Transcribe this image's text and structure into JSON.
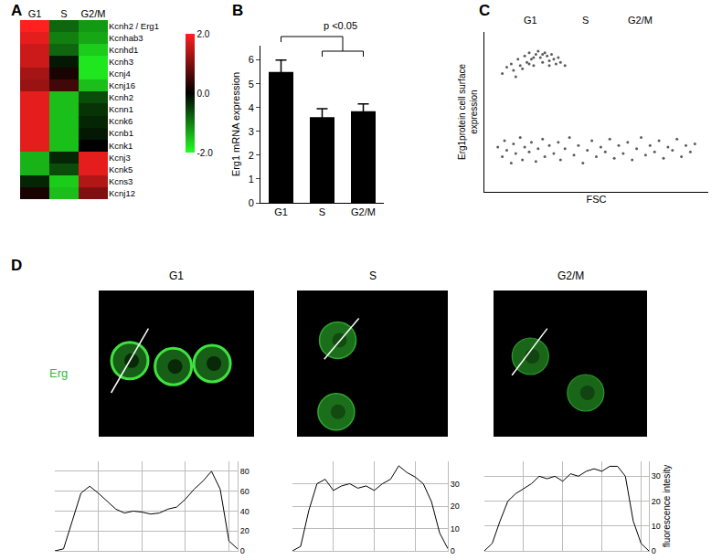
{
  "chart_data": [
    {
      "panel": "A",
      "type": "heatmap",
      "categories": [
        "G1",
        "S",
        "G2/M"
      ],
      "rows": [
        "Kcnh2 / Erg1",
        "Kcnhab3",
        "Kcnhd1",
        "Kcnh3",
        "Kcnj4",
        "Kcnj16",
        "Kcnh2",
        "Kcnn1",
        "Kcnk6",
        "Kcnb1",
        "Kcnk1",
        "Kcnj3",
        "Kcnk5",
        "Kcns3",
        "Kcnj12"
      ],
      "values": [
        [
          2.0,
          -0.8,
          -1.2
        ],
        [
          1.8,
          -1.0,
          -1.3
        ],
        [
          1.6,
          -0.8,
          -1.6
        ],
        [
          1.6,
          -0.2,
          -1.8
        ],
        [
          1.3,
          0.2,
          -1.8
        ],
        [
          1.2,
          0.5,
          -1.5
        ],
        [
          1.8,
          -1.5,
          -0.6
        ],
        [
          1.8,
          -1.5,
          -0.4
        ],
        [
          1.8,
          -1.5,
          -0.3
        ],
        [
          1.8,
          -1.5,
          -0.2
        ],
        [
          1.8,
          -1.5,
          0.0
        ],
        [
          -1.4,
          -0.3,
          1.8
        ],
        [
          -1.4,
          -0.6,
          1.8
        ],
        [
          -0.3,
          -1.6,
          1.4
        ],
        [
          0.2,
          -1.5,
          1.0
        ]
      ],
      "zlim": [
        -2,
        2
      ],
      "colorbar_ticks": [
        {
          "value": 2,
          "label": "2.0"
        },
        {
          "value": 0,
          "label": "0.0"
        },
        {
          "value": -2,
          "label": "-2.0"
        }
      ]
    },
    {
      "panel": "B",
      "type": "bar",
      "categories": [
        "G1",
        "S",
        "G2/M"
      ],
      "values": [
        5.5,
        3.6,
        3.85
      ],
      "errors": [
        0.5,
        0.35,
        0.3
      ],
      "color": "#000000",
      "y_label": "Erg1 mRNA expression",
      "annotations": [
        "p <0.05"
      ],
      "ylim": [
        0,
        6.6
      ],
      "yticks": [
        0,
        1,
        2,
        3,
        4,
        5,
        6
      ]
    },
    {
      "panel": "C",
      "type": "scatter",
      "x": [
        8,
        10,
        12,
        13,
        15,
        16,
        18,
        19,
        20,
        21,
        22,
        23,
        24,
        25,
        26,
        27,
        28,
        29,
        30,
        31,
        32,
        33,
        34,
        36,
        14,
        17,
        22,
        26,
        29,
        20,
        6,
        8,
        9,
        10,
        12,
        13,
        14,
        16,
        17,
        18,
        20,
        21,
        23,
        24,
        26,
        27,
        29,
        31,
        33,
        34,
        36,
        38,
        40,
        42,
        44,
        46,
        48,
        50,
        52,
        54,
        56,
        58,
        60,
        62,
        64,
        66,
        68,
        70,
        72,
        74,
        76,
        78,
        80,
        82,
        84,
        86,
        88,
        90,
        92,
        94
      ],
      "y": [
        74,
        78,
        80,
        76,
        83,
        79,
        85,
        81,
        87,
        83,
        79,
        86,
        88,
        84,
        81,
        87,
        85,
        82,
        86,
        83,
        80,
        84,
        81,
        79,
        72,
        77,
        84,
        86,
        79,
        80,
        28,
        22,
        32,
        26,
        18,
        30,
        24,
        34,
        20,
        28,
        25,
        31,
        19,
        27,
        33,
        22,
        29,
        24,
        31,
        20,
        27,
        34,
        23,
        29,
        18,
        26,
        32,
        22,
        28,
        25,
        33,
        21,
        29,
        24,
        31,
        20,
        27,
        34,
        23,
        29,
        25,
        32,
        21,
        28,
        26,
        33,
        22,
        29,
        25,
        30
      ],
      "color": "#333333",
      "x_label": "FSC",
      "y_label": "Erg1protein cell surface expression",
      "annotations": [
        "G1",
        "S",
        "G2/M"
      ],
      "xlim": [
        0,
        100
      ],
      "ylim": [
        0,
        100
      ],
      "tick_labels": false
    },
    {
      "panel": "D",
      "type": "line",
      "title": "G1",
      "annotations": [
        "Erg"
      ],
      "values": [
        0,
        2,
        30,
        58,
        65,
        58,
        50,
        42,
        38,
        40,
        39,
        37,
        38,
        42,
        44,
        52,
        62,
        70,
        80,
        62,
        10,
        2
      ],
      "color": "#000000",
      "grid": true,
      "tick_labels": "y",
      "xlim": [
        0,
        21
      ],
      "xticks": [
        5,
        10,
        15,
        20
      ],
      "ylim": [
        0,
        90
      ],
      "yticks": [
        0,
        20,
        40,
        60,
        80
      ]
    },
    {
      "type": "line",
      "title": "S",
      "values": [
        0,
        2,
        18,
        30,
        32,
        27,
        29,
        30,
        28,
        29,
        27,
        30,
        32,
        38,
        35,
        33,
        30,
        22,
        8,
        1
      ],
      "color": "#000000",
      "grid": true,
      "tick_labels": "y",
      "xlim": [
        0,
        19
      ],
      "xticks": [
        5,
        10,
        15
      ],
      "ylim": [
        0,
        40
      ],
      "yticks": [
        0,
        10,
        20,
        30
      ]
    },
    {
      "type": "line",
      "title": "G2/M",
      "y_label": "fluorescence intesity",
      "values": [
        0,
        3,
        12,
        20,
        23,
        25,
        27,
        30,
        29,
        30,
        28,
        31,
        30,
        32,
        33,
        32,
        34,
        34,
        30,
        12,
        3,
        0
      ],
      "color": "#000000",
      "grid": true,
      "tick_labels": "y",
      "xlim": [
        0,
        21
      ],
      "xticks": [
        5,
        10,
        15,
        20
      ],
      "ylim": [
        0,
        36
      ],
      "yticks": [
        0,
        10,
        20,
        30
      ]
    }
  ]
}
